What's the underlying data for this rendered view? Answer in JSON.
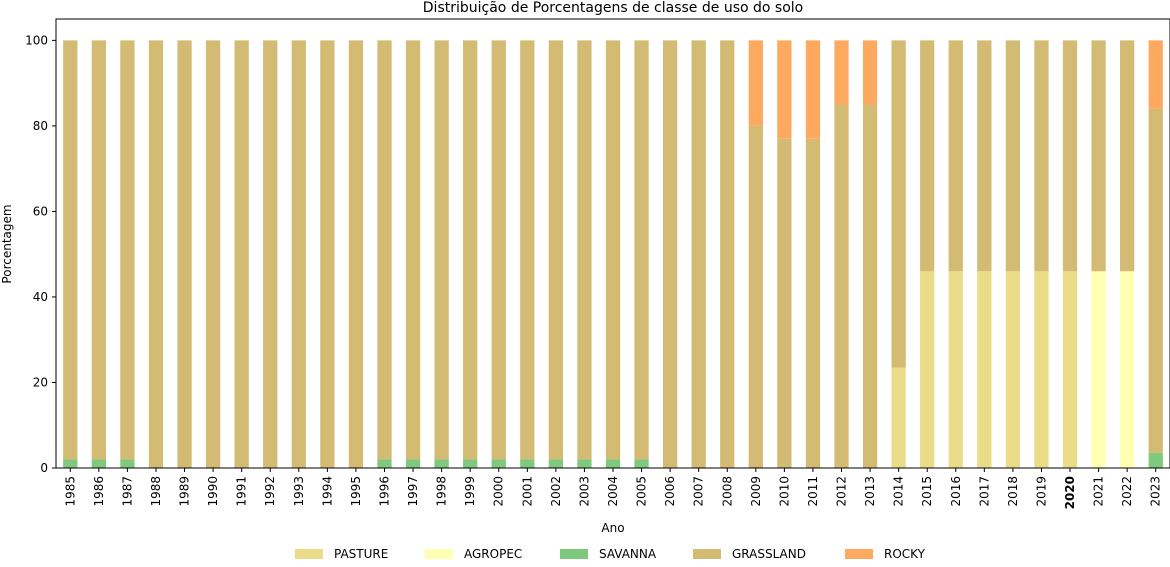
{
  "chart_data": {
    "type": "bar",
    "stacked": true,
    "title": "Distribuição de Porcentagens de classe de uso do solo",
    "xlabel": "Ano",
    "ylabel": "Porcentagem",
    "ylim": [
      0,
      105
    ],
    "yticks": [
      0,
      20,
      40,
      60,
      80,
      100
    ],
    "grid": false,
    "legend_position": "bottom-center",
    "highlighted_category": "2020",
    "categories": [
      "1985",
      "1986",
      "1987",
      "1988",
      "1989",
      "1990",
      "1991",
      "1992",
      "1993",
      "1994",
      "1995",
      "1996",
      "1997",
      "1998",
      "1999",
      "2000",
      "2001",
      "2002",
      "2003",
      "2004",
      "2005",
      "2006",
      "2007",
      "2008",
      "2009",
      "2010",
      "2011",
      "2012",
      "2013",
      "2014",
      "2015",
      "2016",
      "2017",
      "2018",
      "2019",
      "2020",
      "2021",
      "2022",
      "2023"
    ],
    "series": [
      {
        "name": "PASTURE",
        "color": "#ebdc8a",
        "values": [
          0,
          0,
          0,
          0,
          0,
          0,
          0,
          0,
          0,
          0,
          0,
          0,
          0,
          0,
          0,
          0,
          0,
          0,
          0,
          0,
          0,
          0,
          0,
          0,
          0,
          0,
          0,
          0,
          0,
          23.5,
          46,
          46,
          46,
          46,
          46,
          46,
          0,
          0,
          0
        ]
      },
      {
        "name": "AGROPEC",
        "color": "#ffffb3",
        "values": [
          0,
          0,
          0,
          0,
          0,
          0,
          0,
          0,
          0,
          0,
          0,
          0,
          0,
          0,
          0,
          0,
          0,
          0,
          0,
          0,
          0,
          0,
          0,
          0,
          0,
          0,
          0,
          0,
          0,
          0,
          0,
          0,
          0,
          0,
          0,
          0,
          46,
          46,
          0
        ]
      },
      {
        "name": "SAVANNA",
        "color": "#7fc97f",
        "values": [
          2,
          2,
          2,
          0,
          0,
          0,
          0,
          0,
          0,
          0,
          0,
          2,
          2,
          2,
          2,
          2,
          2,
          2,
          2,
          2,
          2,
          0,
          0,
          0,
          0,
          0,
          0,
          0,
          0,
          0,
          0,
          0,
          0,
          0,
          0,
          0,
          0,
          0,
          3.5
        ]
      },
      {
        "name": "GRASSLAND",
        "color": "#d4bb73",
        "values": [
          98,
          98,
          98,
          100,
          100,
          100,
          100,
          100,
          100,
          100,
          100,
          98,
          98,
          98,
          98,
          98,
          98,
          98,
          98,
          98,
          98,
          100,
          100,
          100,
          80,
          77,
          77,
          85,
          85,
          76.5,
          54,
          54,
          54,
          54,
          54,
          54,
          54,
          54,
          80.5
        ]
      },
      {
        "name": "ROCKY",
        "color": "#fdaa60",
        "values": [
          0,
          0,
          0,
          0,
          0,
          0,
          0,
          0,
          0,
          0,
          0,
          0,
          0,
          0,
          0,
          0,
          0,
          0,
          0,
          0,
          0,
          0,
          0,
          0,
          20,
          23,
          23,
          15,
          15,
          0,
          0,
          0,
          0,
          0,
          0,
          0,
          0,
          0,
          16
        ]
      }
    ]
  }
}
